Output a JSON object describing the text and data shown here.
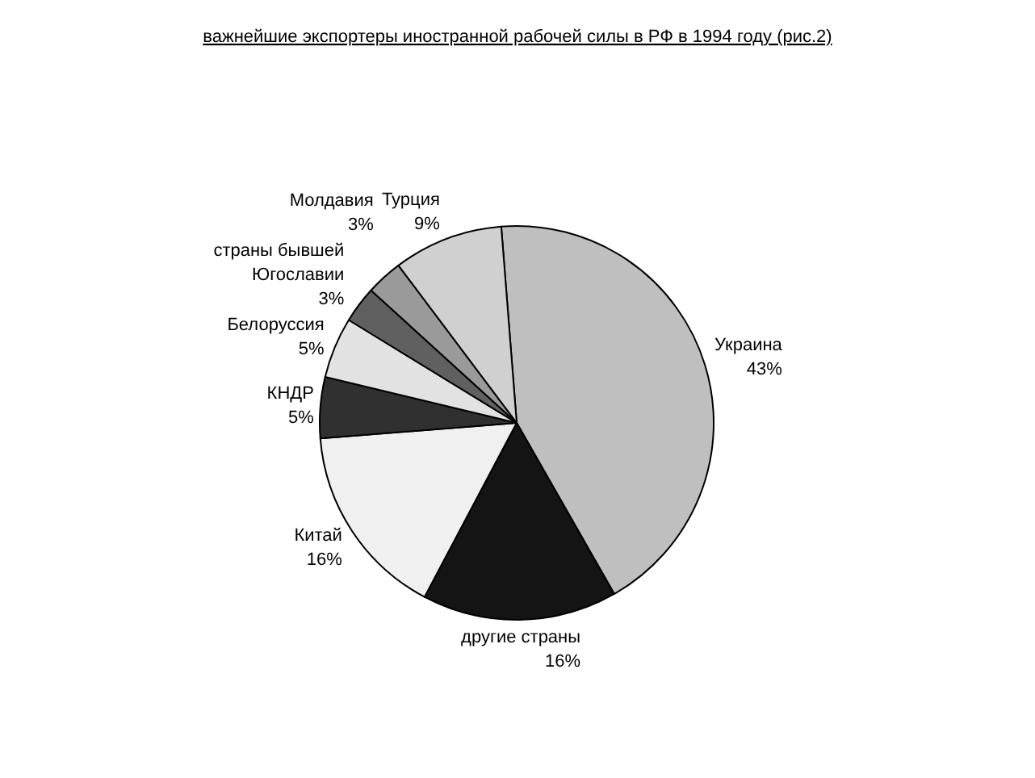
{
  "chart_data": {
    "type": "pie",
    "title": "важнейшие экспортеры иностранной рабочей силы в РФ в 1994 году (рис.2)",
    "categories": [
      "Украина",
      "другие страны",
      "Китай",
      "КНДР",
      "Белоруссия",
      "страны бывшей Югославии",
      "Молдавия",
      "Турция"
    ],
    "values": [
      43,
      16,
      16,
      5,
      5,
      3,
      3,
      9
    ],
    "value_labels": [
      "43%",
      "16%",
      "16%",
      "5%",
      "5%",
      "3%",
      "3%",
      "9%"
    ],
    "colors": [
      "#bfbfbf",
      "#141414",
      "#f0f0f0",
      "#303030",
      "#e2e2e2",
      "#606060",
      "#9a9a9a",
      "#d0d0d0"
    ]
  }
}
